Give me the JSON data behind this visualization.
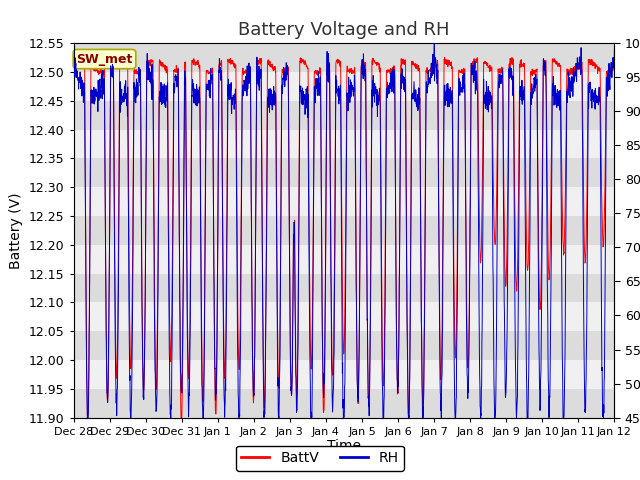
{
  "title": "Battery Voltage and RH",
  "xlabel": "Time",
  "ylabel_left": "Battery (V)",
  "ylabel_right": "RH (%)",
  "ylim_left": [
    11.9,
    12.55
  ],
  "ylim_right": [
    45,
    100
  ],
  "yticks_left": [
    11.9,
    11.95,
    12.0,
    12.05,
    12.1,
    12.15,
    12.2,
    12.25,
    12.3,
    12.35,
    12.4,
    12.45,
    12.5,
    12.55
  ],
  "yticks_right": [
    45,
    50,
    55,
    60,
    65,
    70,
    75,
    80,
    85,
    90,
    95,
    100
  ],
  "xtick_labels": [
    "Dec 28",
    "Dec 29",
    "Dec 30",
    "Dec 31",
    "Jan 1",
    "Jan 2",
    "Jan 3",
    "Jan 4",
    "Jan 5",
    "Jan 6",
    "Jan 7",
    "Jan 8",
    "Jan 9",
    "Jan 10",
    "Jan 11",
    "Jan 12"
  ],
  "legend_label_batt": "BattV",
  "legend_label_rh": "RH",
  "station_label": "SW_met",
  "batt_color": "#ff0000",
  "rh_color": "#0000cc",
  "background_color": "#ffffff",
  "plot_bg_color": "#ffffff",
  "band_color_dark": "#e8e8e8",
  "band_color_light": "#f0f0f0",
  "title_fontsize": 13,
  "axis_fontsize": 10,
  "tick_fontsize": 9,
  "legend_fontsize": 10,
  "n_days": 15,
  "n_points": 2160
}
